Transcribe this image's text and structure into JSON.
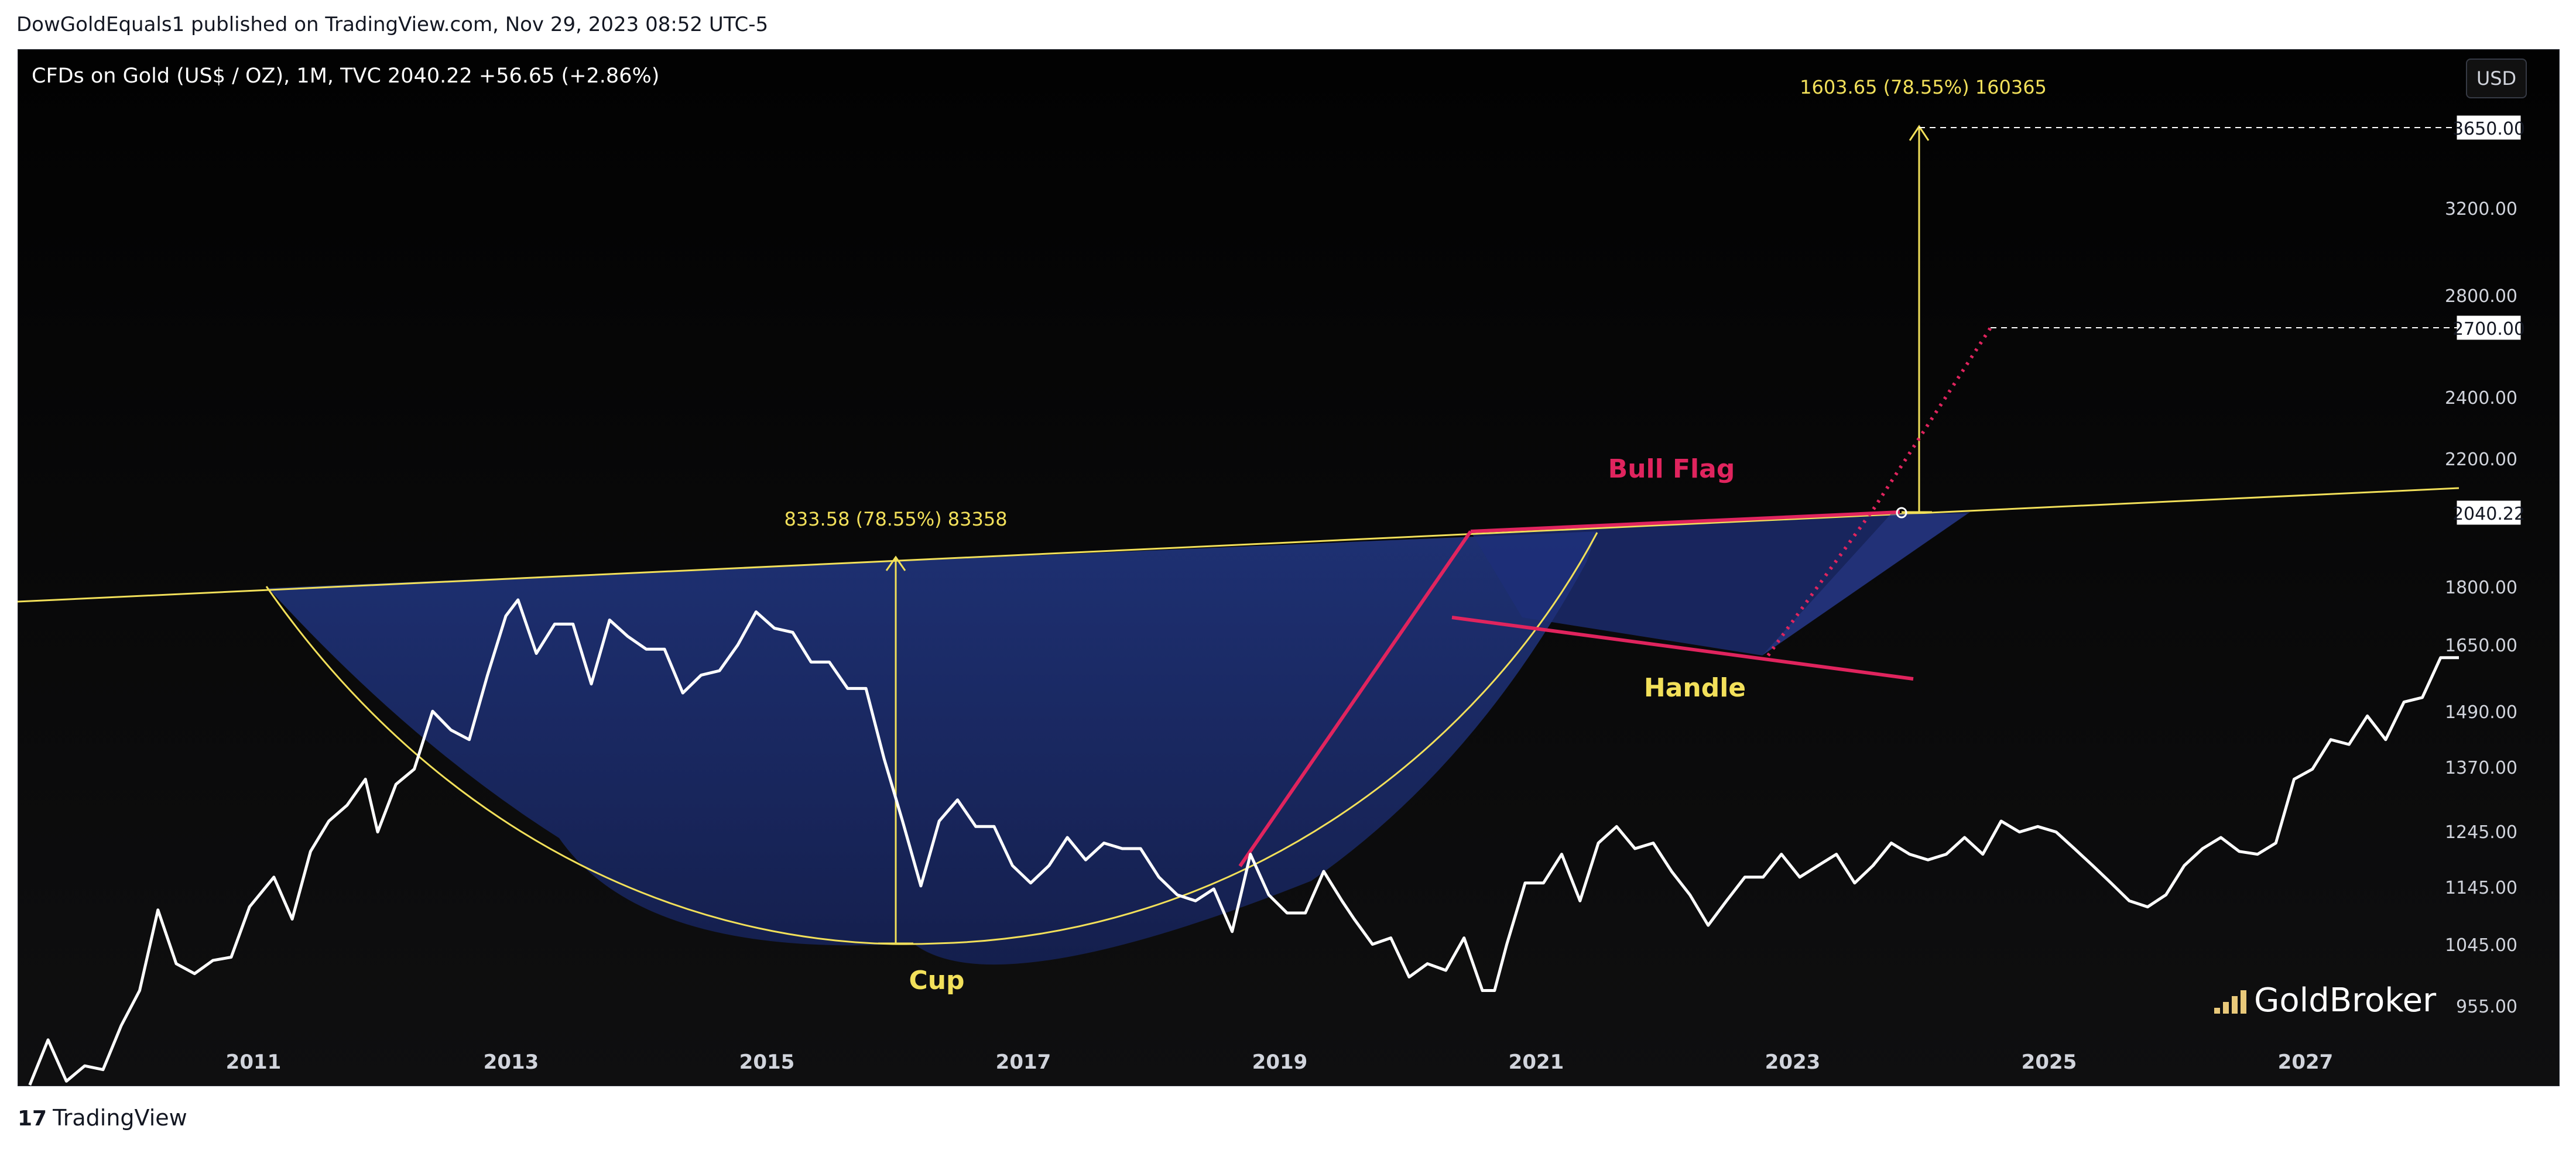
{
  "header": {
    "published_by": "DowGoldEquals1 published on TradingView.com, Nov 29, 2023 08:52 UTC-5"
  },
  "legend": {
    "text": "CFDs on Gold (US$ / OZ), 1M, TVC  2040.22  +56.65 (+2.86%)"
  },
  "currency_button": "USD",
  "footer": {
    "brand": "TradingView"
  },
  "watermark": "GoldBroker",
  "colors": {
    "background": "#050505",
    "price_line": "#ffffff",
    "cup_fill": "#1a2a6c",
    "accent_pink": "#e0245e",
    "annotation_yellow": "#f2e05a"
  },
  "chart_data": {
    "type": "line",
    "title": "CFDs on Gold (US$ / OZ), 1M, TVC",
    "x_ticks": [
      "2011",
      "2013",
      "2015",
      "2017",
      "2019",
      "2021",
      "2023",
      "2025",
      "2027"
    ],
    "y_ticks": [
      "955.00",
      "1045.00",
      "1145.00",
      "1245.00",
      "1370.00",
      "1490.00",
      "1650.00",
      "1800.00",
      "2200.00",
      "2400.00",
      "2800.00",
      "3200.00"
    ],
    "y_labels_highlighted": [
      "3650.00",
      "2700.00",
      "2040.22"
    ],
    "y_scale": "log",
    "ylim": [
      930,
      3900
    ],
    "xlim": [
      2009.0,
      2029.0
    ],
    "series": [
      {
        "values": [
          [
            2009.1,
            930
          ],
          [
            2009.25,
            990
          ],
          [
            2009.4,
            935
          ],
          [
            2009.55,
            955
          ],
          [
            2009.7,
            950
          ],
          [
            2009.85,
            1010
          ],
          [
            2010.0,
            1060
          ],
          [
            2010.15,
            1185
          ],
          [
            2010.3,
            1100
          ],
          [
            2010.45,
            1085
          ],
          [
            2010.6,
            1105
          ],
          [
            2010.75,
            1110
          ],
          [
            2010.9,
            1190
          ],
          [
            2011.1,
            1240
          ],
          [
            2011.25,
            1170
          ],
          [
            2011.4,
            1285
          ],
          [
            2011.55,
            1340
          ],
          [
            2011.7,
            1370
          ],
          [
            2011.85,
            1420
          ],
          [
            2011.95,
            1320
          ],
          [
            2012.1,
            1410
          ],
          [
            2012.25,
            1440
          ],
          [
            2012.4,
            1560
          ],
          [
            2012.55,
            1520
          ],
          [
            2012.7,
            1500
          ],
          [
            2012.85,
            1640
          ],
          [
            2013.0,
            1780
          ],
          [
            2013.1,
            1820
          ],
          [
            2013.25,
            1690
          ],
          [
            2013.4,
            1760
          ],
          [
            2013.55,
            1760
          ],
          [
            2013.7,
            1620
          ],
          [
            2013.85,
            1770
          ],
          [
            2014.0,
            1730
          ],
          [
            2014.15,
            1700
          ],
          [
            2014.3,
            1700
          ],
          [
            2014.45,
            1600
          ],
          [
            2014.6,
            1640
          ],
          [
            2014.75,
            1650
          ],
          [
            2014.9,
            1710
          ],
          [
            2015.05,
            1790
          ],
          [
            2015.2,
            1750
          ],
          [
            2015.35,
            1740
          ],
          [
            2015.5,
            1670
          ],
          [
            2015.65,
            1670
          ],
          [
            2015.8,
            1610
          ],
          [
            2015.95,
            1610
          ],
          [
            2016.1,
            1460
          ],
          [
            2016.25,
            1340
          ],
          [
            2016.4,
            1225
          ],
          [
            2016.55,
            1340
          ],
          [
            2016.7,
            1380
          ],
          [
            2016.85,
            1330
          ],
          [
            2017.0,
            1330
          ],
          [
            2017.15,
            1260
          ],
          [
            2017.3,
            1230
          ],
          [
            2017.45,
            1260
          ],
          [
            2017.6,
            1310
          ],
          [
            2017.75,
            1270
          ],
          [
            2017.9,
            1300
          ],
          [
            2018.05,
            1290
          ],
          [
            2018.2,
            1290
          ],
          [
            2018.35,
            1240
          ],
          [
            2018.5,
            1210
          ],
          [
            2018.65,
            1200
          ],
          [
            2018.8,
            1220
          ],
          [
            2018.95,
            1150
          ],
          [
            2019.1,
            1280
          ],
          [
            2019.25,
            1210
          ],
          [
            2019.4,
            1180
          ],
          [
            2019.55,
            1180
          ],
          [
            2019.7,
            1250
          ],
          [
            2019.85,
            1200
          ],
          [
            2019.95,
            1170
          ],
          [
            2020.1,
            1130
          ],
          [
            2020.25,
            1140
          ],
          [
            2020.4,
            1080
          ],
          [
            2020.55,
            1100
          ],
          [
            2020.7,
            1090
          ],
          [
            2020.85,
            1140
          ],
          [
            2021.0,
            1060
          ],
          [
            2021.1,
            1060
          ],
          [
            2021.2,
            1130
          ],
          [
            2021.35,
            1230
          ],
          [
            2021.5,
            1230
          ],
          [
            2021.65,
            1280
          ],
          [
            2021.8,
            1200
          ],
          [
            2021.95,
            1300
          ],
          [
            2022.1,
            1330
          ],
          [
            2022.25,
            1290
          ],
          [
            2022.4,
            1300
          ],
          [
            2022.55,
            1250
          ],
          [
            2022.7,
            1210
          ],
          [
            2022.85,
            1160
          ],
          [
            2023.0,
            1200
          ],
          [
            2023.15,
            1240
          ],
          [
            2023.3,
            1240
          ],
          [
            2023.45,
            1280
          ],
          [
            2023.6,
            1240
          ],
          [
            2023.75,
            1260
          ],
          [
            2023.9,
            1280
          ],
          [
            2024.05,
            1230
          ],
          [
            2024.2,
            1260
          ],
          [
            2024.35,
            1300
          ],
          [
            2024.5,
            1280
          ],
          [
            2024.65,
            1270
          ],
          [
            2024.8,
            1280
          ],
          [
            2024.95,
            1310
          ],
          [
            2025.1,
            1280
          ],
          [
            2025.25,
            1340
          ],
          [
            2025.4,
            1320
          ],
          [
            2025.55,
            1330
          ],
          [
            2025.7,
            1320
          ],
          [
            2025.85,
            1290
          ],
          [
            2026.0,
            1260
          ],
          [
            2026.15,
            1230
          ],
          [
            2026.3,
            1200
          ],
          [
            2026.45,
            1190
          ],
          [
            2026.6,
            1210
          ],
          [
            2026.75,
            1260
          ],
          [
            2026.9,
            1290
          ],
          [
            2027.05,
            1310
          ],
          [
            2027.2,
            1285
          ],
          [
            2027.35,
            1280
          ],
          [
            2027.5,
            1300
          ],
          [
            2027.65,
            1420
          ],
          [
            2027.8,
            1440
          ],
          [
            2027.95,
            1500
          ],
          [
            2028.1,
            1490
          ],
          [
            2028.25,
            1550
          ],
          [
            2028.4,
            1500
          ],
          [
            2028.55,
            1580
          ],
          [
            2028.7,
            1590
          ],
          [
            2028.85,
            1680
          ],
          [
            2029.0,
            1680
          ]
        ]
      }
    ],
    "annotations": [
      "Cup",
      "Handle",
      "Bull Flag",
      "833.58 (78.55%) 83358",
      "1603.65 (78.55%) 160365"
    ]
  }
}
